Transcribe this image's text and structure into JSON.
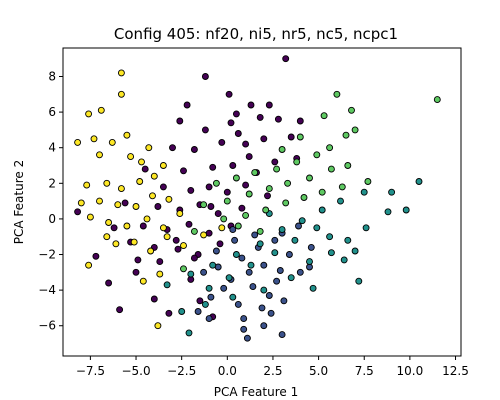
{
  "chart_data": {
    "type": "scatter",
    "title": "Config 405: nf20, ni5, nr5, nc5, ncpc1",
    "xlabel": "PCA Feature 1",
    "ylabel": "PCA Feature 2",
    "xlim": [
      -9.0,
      12.8
    ],
    "ylim": [
      -7.7,
      9.6
    ],
    "xticks": [
      -7.5,
      -5.0,
      -2.5,
      0.0,
      2.5,
      5.0,
      7.5,
      10.0,
      12.5
    ],
    "xtick_labels": [
      "−7.5",
      "−5.0",
      "−2.5",
      "0.0",
      "2.5",
      "5.0",
      "7.5",
      "10.0",
      "12.5"
    ],
    "yticks": [
      -6,
      -4,
      -2,
      0,
      2,
      4,
      6,
      8
    ],
    "ytick_labels": [
      "−6",
      "−4",
      "−2",
      "0",
      "2",
      "4",
      "6",
      "8"
    ],
    "grid": false,
    "legend": "none",
    "marker_edge_color": "#000000",
    "series": [
      {
        "color": "#440154",
        "points": [
          [
            -2.6,
            5.5
          ],
          [
            0.2,
            5.4
          ],
          [
            3.2,
            9.0
          ],
          [
            -1.2,
            8.0
          ],
          [
            0.1,
            7.0
          ],
          [
            1.3,
            6.4
          ],
          [
            2.3,
            6.4
          ],
          [
            -2.2,
            6.4
          ],
          [
            -1.2,
            5.0
          ],
          [
            0.6,
            4.8
          ],
          [
            1.8,
            5.7
          ],
          [
            2.8,
            5.6
          ],
          [
            4.0,
            5.5
          ],
          [
            -0.3,
            4.3
          ],
          [
            1.0,
            4.2
          ],
          [
            2.0,
            4.5
          ],
          [
            -3.0,
            4.0
          ],
          [
            -1.8,
            3.9
          ],
          [
            3.5,
            4.6
          ],
          [
            -4.5,
            2.8
          ],
          [
            -2.4,
            2.7
          ],
          [
            -0.8,
            2.9
          ],
          [
            0.3,
            3.0
          ],
          [
            1.2,
            3.5
          ],
          [
            2.6,
            3.2
          ],
          [
            -3.5,
            1.8
          ],
          [
            -2.0,
            1.6
          ],
          [
            -1.0,
            1.8
          ],
          [
            0.0,
            1.5
          ],
          [
            1.0,
            1.9
          ],
          [
            2.2,
            1.3
          ],
          [
            -3.8,
            0.7
          ],
          [
            -2.6,
            0.5
          ],
          [
            -1.5,
            0.8
          ],
          [
            -0.5,
            0.3
          ],
          [
            0.8,
            0.6
          ],
          [
            -4.6,
            -0.4
          ],
          [
            -3.3,
            -0.6
          ],
          [
            -2.1,
            -0.3
          ],
          [
            -1.0,
            -0.8
          ],
          [
            0.2,
            -0.4
          ],
          [
            -5.3,
            -1.3
          ],
          [
            -4.0,
            -1.6
          ],
          [
            -2.8,
            -1.2
          ],
          [
            -1.6,
            -2.0
          ],
          [
            -0.4,
            -1.4
          ],
          [
            -6.5,
            -3.6
          ],
          [
            -5.0,
            -3.0
          ],
          [
            -3.7,
            -2.4
          ],
          [
            -2.0,
            -3.4
          ],
          [
            -8.2,
            0.4
          ],
          [
            -7.2,
            -2.1
          ],
          [
            -5.9,
            -5.1
          ],
          [
            -4.0,
            -4.5
          ],
          [
            -3.2,
            -5.3
          ],
          [
            -1.5,
            -4.6
          ],
          [
            -0.8,
            -5.5
          ],
          [
            -1.8,
            -2.2
          ],
          [
            -6.2,
            -0.5
          ],
          [
            -5.6,
            0.9
          ],
          [
            -4.9,
            -2.3
          ],
          [
            -2.7,
            -1.7
          ],
          [
            -0.9,
            0.7
          ],
          [
            1.6,
            2.6
          ],
          [
            3.8,
            3.4
          ],
          [
            0.5,
            5.9
          ]
        ]
      },
      {
        "color": "#3b528b",
        "points": [
          [
            0.3,
            -0.6
          ],
          [
            1.5,
            -0.9
          ],
          [
            2.6,
            -1.2
          ],
          [
            3.9,
            -0.4
          ],
          [
            -0.6,
            -1.8
          ],
          [
            0.8,
            -2.2
          ],
          [
            2.0,
            -2.6
          ],
          [
            3.4,
            -2.0
          ],
          [
            4.6,
            -1.6
          ],
          [
            -1.3,
            -3.0
          ],
          [
            0.2,
            -3.4
          ],
          [
            1.4,
            -3.8
          ],
          [
            2.7,
            -3.5
          ],
          [
            4.0,
            -3.0
          ],
          [
            -0.9,
            -4.4
          ],
          [
            0.6,
            -4.8
          ],
          [
            1.9,
            -5.0
          ],
          [
            3.1,
            -4.6
          ],
          [
            0.9,
            -6.2
          ],
          [
            2.0,
            -6.0
          ],
          [
            3.0,
            -6.5
          ],
          [
            -1.0,
            -5.6
          ],
          [
            0.9,
            -5.6
          ],
          [
            2.4,
            -5.3
          ],
          [
            1.1,
            -6.7
          ],
          [
            -0.5,
            -2.7
          ],
          [
            1.7,
            -1.6
          ],
          [
            3.0,
            -0.8
          ],
          [
            2.3,
            -4.3
          ],
          [
            1.2,
            -3.0
          ],
          [
            -0.2,
            -3.9
          ],
          [
            4.5,
            -2.7
          ],
          [
            0.4,
            -1.2
          ],
          [
            2.9,
            -2.9
          ],
          [
            -1.6,
            -5.2
          ]
        ]
      },
      {
        "color": "#21918c",
        "points": [
          [
            -3.3,
            -3.7
          ],
          [
            -2.0,
            -3.1
          ],
          [
            -0.8,
            -2.6
          ],
          [
            0.5,
            -2.0
          ],
          [
            1.8,
            -1.4
          ],
          [
            3.0,
            -0.6
          ],
          [
            4.1,
            -0.1
          ],
          [
            5.2,
            0.5
          ],
          [
            6.2,
            1.0
          ],
          [
            7.5,
            1.5
          ],
          [
            9.0,
            1.5
          ],
          [
            10.5,
            2.1
          ],
          [
            9.8,
            0.5
          ],
          [
            8.8,
            0.4
          ],
          [
            7.6,
            -0.5
          ],
          [
            6.6,
            -1.2
          ],
          [
            5.7,
            -1.9
          ],
          [
            4.5,
            -2.4
          ],
          [
            -2.5,
            -5.2
          ],
          [
            -1.0,
            -3.9
          ],
          [
            0.1,
            -3.3
          ],
          [
            1.3,
            -2.6
          ],
          [
            2.6,
            -1.9
          ],
          [
            3.7,
            -1.2
          ],
          [
            4.9,
            -0.5
          ],
          [
            7.0,
            -1.8
          ],
          [
            7.2,
            -3.5
          ],
          [
            -2.1,
            -6.4
          ],
          [
            -1.2,
            -4.8
          ],
          [
            0.3,
            -4.4
          ],
          [
            2.0,
            -4.0
          ],
          [
            3.5,
            -3.3
          ],
          [
            4.7,
            -3.9
          ],
          [
            5.6,
            -1.0
          ],
          [
            6.4,
            -2.3
          ],
          [
            2.3,
            0.3
          ]
        ]
      },
      {
        "color": "#5ec962",
        "points": [
          [
            -0.6,
            2.0
          ],
          [
            0.5,
            2.3
          ],
          [
            1.5,
            2.6
          ],
          [
            2.7,
            2.8
          ],
          [
            3.8,
            3.2
          ],
          [
            4.9,
            3.6
          ],
          [
            5.6,
            4.0
          ],
          [
            6.5,
            4.7
          ],
          [
            5.3,
            5.8
          ],
          [
            6.0,
            7.0
          ],
          [
            7.0,
            5.0
          ],
          [
            11.5,
            6.7
          ],
          [
            -1.3,
            0.8
          ],
          [
            0.0,
            1.0
          ],
          [
            1.2,
            1.4
          ],
          [
            2.3,
            1.7
          ],
          [
            3.3,
            2.0
          ],
          [
            4.5,
            2.3
          ],
          [
            5.7,
            2.8
          ],
          [
            6.6,
            3.0
          ],
          [
            -0.2,
            0.0
          ],
          [
            1.0,
            0.2
          ],
          [
            2.1,
            0.5
          ],
          [
            3.2,
            0.9
          ],
          [
            4.2,
            1.2
          ],
          [
            5.2,
            1.5
          ],
          [
            6.3,
            1.8
          ],
          [
            -1.8,
            -0.7
          ],
          [
            0.6,
            -0.4
          ],
          [
            1.8,
            -0.7
          ],
          [
            3.0,
            3.9
          ],
          [
            4.0,
            4.6
          ],
          [
            7.7,
            2.1
          ],
          [
            6.8,
            6.1
          ],
          [
            -2.4,
            -2.8
          ]
        ]
      },
      {
        "color": "#fde725",
        "points": [
          [
            -5.8,
            8.2
          ],
          [
            -5.8,
            7.0
          ],
          [
            -7.6,
            5.9
          ],
          [
            -6.9,
            6.1
          ],
          [
            -7.3,
            4.5
          ],
          [
            -8.2,
            4.3
          ],
          [
            -6.3,
            4.3
          ],
          [
            -5.5,
            4.7
          ],
          [
            -4.3,
            4.0
          ],
          [
            -5.3,
            3.5
          ],
          [
            -7.0,
            3.6
          ],
          [
            -4.7,
            3.2
          ],
          [
            -7.7,
            1.9
          ],
          [
            -6.6,
            2.0
          ],
          [
            -5.8,
            1.7
          ],
          [
            -4.8,
            2.1
          ],
          [
            -4.0,
            2.4
          ],
          [
            -3.5,
            3.0
          ],
          [
            -8.0,
            0.9
          ],
          [
            -7.0,
            1.0
          ],
          [
            -6.0,
            0.8
          ],
          [
            -5.0,
            0.7
          ],
          [
            -4.1,
            1.3
          ],
          [
            -3.2,
            1.1
          ],
          [
            -7.5,
            0.1
          ],
          [
            -6.5,
            -0.2
          ],
          [
            -5.5,
            -0.4
          ],
          [
            -4.4,
            0.0
          ],
          [
            -3.5,
            -0.5
          ],
          [
            -2.6,
            0.3
          ],
          [
            -6.1,
            -1.4
          ],
          [
            -5.1,
            -1.3
          ],
          [
            -4.2,
            -1.8
          ],
          [
            -3.3,
            -1.0
          ],
          [
            -2.4,
            -1.5
          ],
          [
            -1.3,
            -0.9
          ],
          [
            -0.3,
            -0.5
          ],
          [
            -4.6,
            -3.5
          ],
          [
            -3.7,
            -3.1
          ],
          [
            -3.8,
            -6.0
          ],
          [
            -7.6,
            -2.6
          ],
          [
            -6.6,
            -1.0
          ]
        ]
      }
    ]
  }
}
